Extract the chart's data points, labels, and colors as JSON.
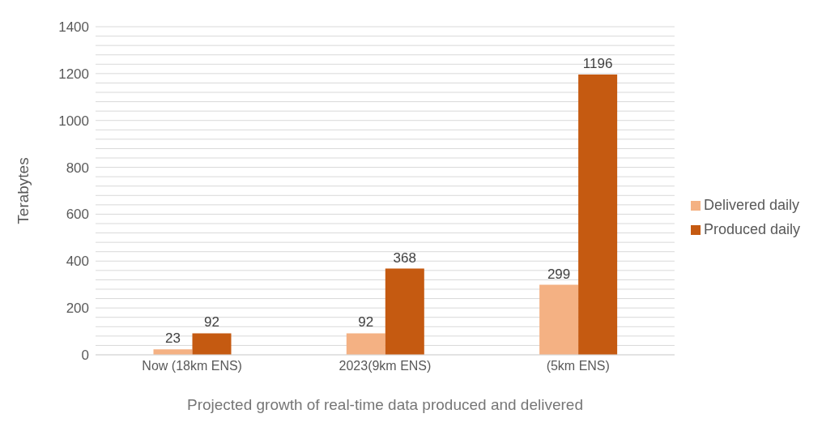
{
  "chart_data": {
    "type": "bar",
    "xlabel": "Projected growth of real-time data produced and delivered",
    "ylabel": "Terabytes",
    "categories": [
      "Now (18km ENS)",
      "2023(9km ENS)",
      "(5km ENS)"
    ],
    "series": [
      {
        "name": "Delivered daily",
        "color": "#f4b183",
        "values": [
          23,
          92,
          299
        ]
      },
      {
        "name": "Produced daily",
        "color": "#c55a11",
        "values": [
          92,
          368,
          1196
        ]
      }
    ],
    "ylim": [
      0,
      1400
    ],
    "yticks": [
      0,
      {
        "value": 40,
        "label": null
      },
      {
        "value": 80,
        "label": null
      },
      {
        "value": 120,
        "label": null
      },
      {
        "value": 160,
        "label": null
      },
      200,
      {
        "value": 240,
        "label": null
      },
      {
        "value": 280,
        "label": null
      },
      {
        "value": 320,
        "label": null
      },
      {
        "value": 360,
        "label": null
      },
      400,
      {
        "value": 440,
        "label": null
      },
      {
        "value": 480,
        "label": null
      },
      {
        "value": 520,
        "label": null
      },
      {
        "value": 560,
        "label": null
      },
      600,
      {
        "value": 640,
        "label": null
      },
      {
        "value": 680,
        "label": null
      },
      {
        "value": 720,
        "label": null
      },
      {
        "value": 760,
        "label": null
      },
      800,
      {
        "value": 840,
        "label": null
      },
      {
        "value": 880,
        "label": null
      },
      {
        "value": 920,
        "label": null
      },
      {
        "value": 960,
        "label": null
      },
      1000,
      {
        "value": 1040,
        "label": null
      },
      {
        "value": 1080,
        "label": null
      },
      {
        "value": 1120,
        "label": null
      },
      {
        "value": 1160,
        "label": null
      },
      1200,
      {
        "value": 1240,
        "label": null
      },
      {
        "value": 1280,
        "label": null
      },
      {
        "value": 1320,
        "label": null
      },
      {
        "value": 1360,
        "label": null
      },
      1400
    ],
    "grid": "y",
    "legend": "right",
    "data_labels": true
  }
}
